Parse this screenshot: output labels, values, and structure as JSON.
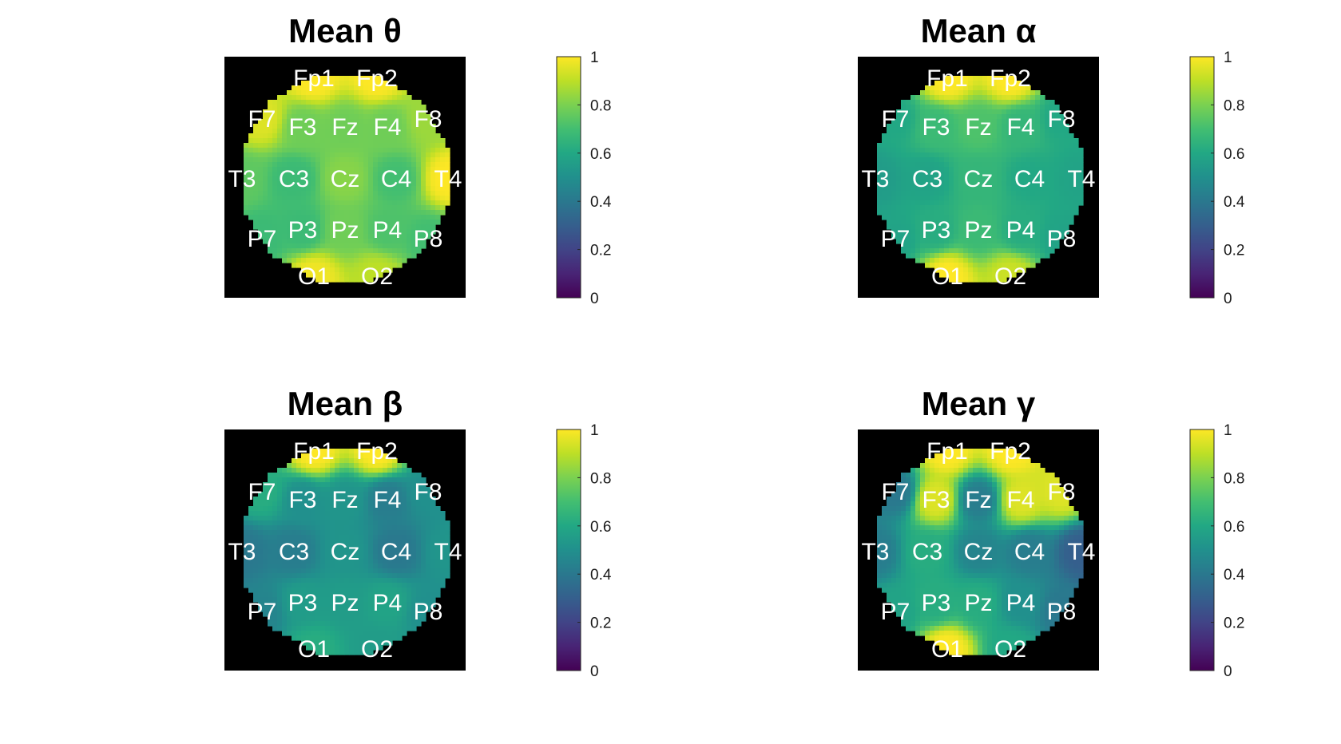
{
  "chart_data": [
    {
      "type": "heatmap",
      "title": "Mean θ",
      "colormap": "viridis",
      "clim": [
        0,
        1
      ],
      "colorbar_ticks": [
        "0",
        "0.2",
        "0.4",
        "0.6",
        "0.8",
        "1"
      ],
      "electrodes": [
        {
          "label": "Fp1",
          "value": 1.0
        },
        {
          "label": "Fp2",
          "value": 1.0
        },
        {
          "label": "F7",
          "value": 0.95
        },
        {
          "label": "F3",
          "value": 0.78
        },
        {
          "label": "Fz",
          "value": 0.78
        },
        {
          "label": "F4",
          "value": 0.78
        },
        {
          "label": "F8",
          "value": 0.85
        },
        {
          "label": "T3",
          "value": 0.75
        },
        {
          "label": "C3",
          "value": 0.68
        },
        {
          "label": "Cz",
          "value": 0.82
        },
        {
          "label": "C4",
          "value": 0.7
        },
        {
          "label": "T4",
          "value": 1.0
        },
        {
          "label": "P7",
          "value": 0.68
        },
        {
          "label": "P3",
          "value": 0.68
        },
        {
          "label": "Pz",
          "value": 0.78
        },
        {
          "label": "P4",
          "value": 0.72
        },
        {
          "label": "P8",
          "value": 0.7
        },
        {
          "label": "O1",
          "value": 0.98
        },
        {
          "label": "O2",
          "value": 0.9
        }
      ]
    },
    {
      "type": "heatmap",
      "title": "Mean α",
      "colormap": "viridis",
      "clim": [
        0,
        1
      ],
      "colorbar_ticks": [
        "0",
        "0.2",
        "0.4",
        "0.6",
        "0.8",
        "1"
      ],
      "electrodes": [
        {
          "label": "Fp1",
          "value": 1.0
        },
        {
          "label": "Fp2",
          "value": 1.0
        },
        {
          "label": "F7",
          "value": 0.6
        },
        {
          "label": "F3",
          "value": 0.68
        },
        {
          "label": "Fz",
          "value": 0.72
        },
        {
          "label": "F4",
          "value": 0.66
        },
        {
          "label": "F8",
          "value": 0.6
        },
        {
          "label": "T3",
          "value": 0.55
        },
        {
          "label": "C3",
          "value": 0.58
        },
        {
          "label": "Cz",
          "value": 0.66
        },
        {
          "label": "C4",
          "value": 0.6
        },
        {
          "label": "T4",
          "value": 0.58
        },
        {
          "label": "P7",
          "value": 0.58
        },
        {
          "label": "P3",
          "value": 0.62
        },
        {
          "label": "Pz",
          "value": 0.68
        },
        {
          "label": "P4",
          "value": 0.62
        },
        {
          "label": "P8",
          "value": 0.58
        },
        {
          "label": "O1",
          "value": 1.0
        },
        {
          "label": "O2",
          "value": 0.92
        }
      ]
    },
    {
      "type": "heatmap",
      "title": "Mean β",
      "colormap": "viridis",
      "clim": [
        0,
        1
      ],
      "colorbar_ticks": [
        "0",
        "0.2",
        "0.4",
        "0.6",
        "0.8",
        "1"
      ],
      "electrodes": [
        {
          "label": "Fp1",
          "value": 1.0
        },
        {
          "label": "Fp2",
          "value": 1.0
        },
        {
          "label": "F7",
          "value": 0.62
        },
        {
          "label": "F3",
          "value": 0.5
        },
        {
          "label": "Fz",
          "value": 0.52
        },
        {
          "label": "F4",
          "value": 0.42
        },
        {
          "label": "F8",
          "value": 0.5
        },
        {
          "label": "T3",
          "value": 0.4
        },
        {
          "label": "C3",
          "value": 0.42
        },
        {
          "label": "Cz",
          "value": 0.52
        },
        {
          "label": "C4",
          "value": 0.4
        },
        {
          "label": "T4",
          "value": 0.52
        },
        {
          "label": "P7",
          "value": 0.45
        },
        {
          "label": "P3",
          "value": 0.55
        },
        {
          "label": "Pz",
          "value": 0.55
        },
        {
          "label": "P4",
          "value": 0.58
        },
        {
          "label": "P8",
          "value": 0.5
        },
        {
          "label": "O1",
          "value": 0.62
        },
        {
          "label": "O2",
          "value": 0.55
        }
      ]
    },
    {
      "type": "heatmap",
      "title": "Mean γ",
      "colormap": "viridis",
      "clim": [
        0,
        1
      ],
      "colorbar_ticks": [
        "0",
        "0.2",
        "0.4",
        "0.6",
        "0.8",
        "1"
      ],
      "electrodes": [
        {
          "label": "Fp1",
          "value": 1.0
        },
        {
          "label": "Fp2",
          "value": 1.0
        },
        {
          "label": "F7",
          "value": 0.4
        },
        {
          "label": "F3",
          "value": 0.95
        },
        {
          "label": "Fz",
          "value": 0.42
        },
        {
          "label": "F4",
          "value": 0.95
        },
        {
          "label": "F8",
          "value": 0.95
        },
        {
          "label": "T3",
          "value": 0.42
        },
        {
          "label": "C3",
          "value": 0.62
        },
        {
          "label": "Cz",
          "value": 0.45
        },
        {
          "label": "C4",
          "value": 0.42
        },
        {
          "label": "T4",
          "value": 0.3
        },
        {
          "label": "P7",
          "value": 0.58
        },
        {
          "label": "P3",
          "value": 0.62
        },
        {
          "label": "Pz",
          "value": 0.62
        },
        {
          "label": "P4",
          "value": 0.5
        },
        {
          "label": "P8",
          "value": 0.4
        },
        {
          "label": "O1",
          "value": 1.0
        },
        {
          "label": "O2",
          "value": 0.6
        }
      ]
    }
  ]
}
